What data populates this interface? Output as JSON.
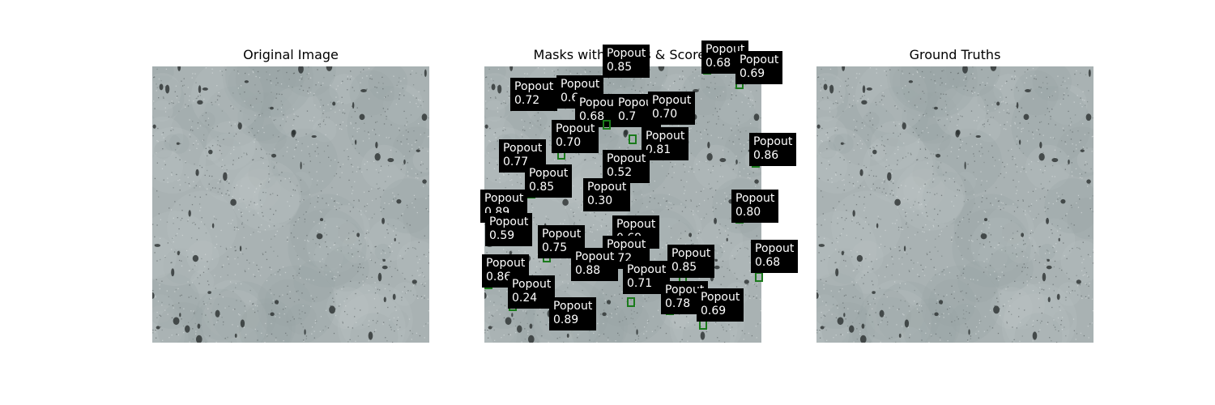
{
  "panels": [
    {
      "title": "Original Image"
    },
    {
      "title": "Masks with Labels & Scores"
    },
    {
      "title": "Ground Truths"
    }
  ],
  "detections": [
    {
      "label": "Popout",
      "score": "0.85"
    },
    {
      "label": "Popout",
      "score": "0.68"
    },
    {
      "label": "Popout",
      "score": "0.69"
    },
    {
      "label": "Popout",
      "score": "0.72"
    },
    {
      "label": "Popout",
      "score": "0.6"
    },
    {
      "label": "Popout",
      "score": "0.68"
    },
    {
      "label": "Popout",
      "score": "0.7"
    },
    {
      "label": "Popout",
      "score": "0.70"
    },
    {
      "label": "Popout",
      "score": "0.70"
    },
    {
      "label": "Popout",
      "score": "0.81"
    },
    {
      "label": "Popout",
      "score": "0.86"
    },
    {
      "label": "Popout",
      "score": "0.77"
    },
    {
      "label": "Popout",
      "score": "0.52"
    },
    {
      "label": "Popout",
      "score": "0.85"
    },
    {
      "label": "Popout",
      "score": "0.30"
    },
    {
      "label": "Popout",
      "score": "0.89"
    },
    {
      "label": "Popout",
      "score": "0.80"
    },
    {
      "label": "Popout",
      "score": "0.59"
    },
    {
      "label": "Popout",
      "score": "0.69"
    },
    {
      "label": "Popout",
      "score": "0.75"
    },
    {
      "label": "Popout",
      "score": "0.72"
    },
    {
      "label": "Popout",
      "score": "0.68"
    },
    {
      "label": "Popout",
      "score": "0.88"
    },
    {
      "label": "Popout",
      "score": "0.85"
    },
    {
      "label": "Popout",
      "score": "0.86"
    },
    {
      "label": "Popout",
      "score": "0.71"
    },
    {
      "label": "Popout",
      "score": "0.24"
    },
    {
      "label": "Popout",
      "score": "0.78"
    },
    {
      "label": "Popout",
      "score": "0.69"
    },
    {
      "label": "Popout",
      "score": "0.89"
    }
  ],
  "colors": {
    "mask_box": "#1a7a1a",
    "label_bg": "#000000",
    "label_text": "#ffffff"
  }
}
